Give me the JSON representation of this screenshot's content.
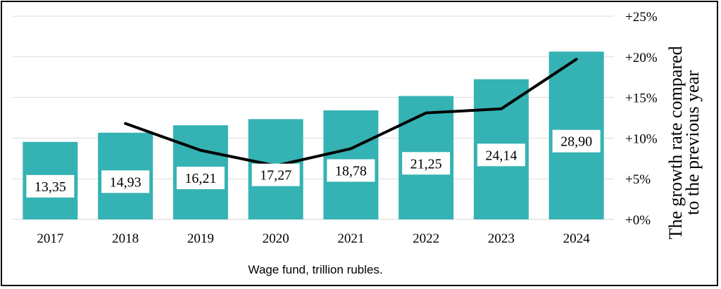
{
  "chart_data": {
    "type": "bar",
    "categories": [
      "2017",
      "2018",
      "2019",
      "2020",
      "2021",
      "2022",
      "2023",
      "2024"
    ],
    "values": [
      13.35,
      14.93,
      16.21,
      17.27,
      18.78,
      21.25,
      24.14,
      28.9
    ],
    "value_labels": [
      "13,35",
      "14,93",
      "16,21",
      "17,27",
      "18,78",
      "21,25",
      "24,14",
      "28,90"
    ],
    "bar_color": "#35b2b3",
    "line_series": {
      "type": "line",
      "color": "#000000",
      "x": [
        "2018",
        "2019",
        "2020",
        "2021",
        "2022",
        "2023",
        "2024"
      ],
      "values": [
        11.8,
        8.5,
        6.6,
        8.7,
        13.1,
        13.6,
        19.7
      ]
    },
    "y2_ticks": [
      "+0%",
      "+5%",
      "+10%",
      "+15%",
      "+20%",
      "+25%"
    ],
    "y2lim": [
      0,
      25
    ],
    "ylim": [
      0,
      35
    ],
    "xlabel": "Wage fund, trillion rubles.",
    "y2label_lines": [
      "The growth rate compared",
      "to the previous year"
    ],
    "grid": true,
    "legend": "none"
  }
}
